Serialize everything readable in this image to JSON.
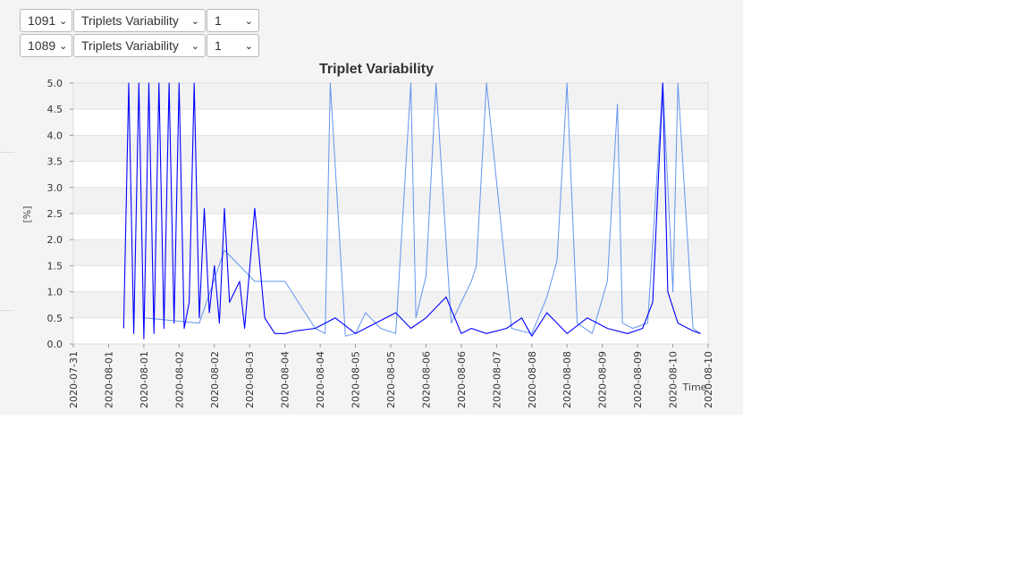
{
  "controls": [
    {
      "id_value": "1091",
      "metric_value": "Triplets Variability",
      "channel_value": "1"
    },
    {
      "id_value": "1089",
      "metric_value": "Triplets Variability",
      "channel_value": "1"
    }
  ],
  "chart_data": {
    "type": "line",
    "title": "Triplet Variability",
    "ylabel": "[%]",
    "xlabel": "Time",
    "ylim": [
      0,
      5
    ],
    "yticks": [
      0,
      0.5,
      1,
      1.5,
      2,
      2.5,
      3,
      3.5,
      4,
      4.5,
      5
    ],
    "ytick_labels": [
      "0.0",
      "0.5",
      "1.0",
      "1.5",
      "2.0",
      "2.5",
      "3.0",
      "3.5",
      "4.0",
      "4.5",
      "5.0"
    ],
    "xtick_labels": [
      "2020-07-31",
      "2020-08-01",
      "2020-08-01",
      "2020-08-02",
      "2020-08-02",
      "2020-08-03",
      "2020-08-04",
      "2020-08-04",
      "2020-08-05",
      "2020-08-05",
      "2020-08-06",
      "2020-08-06",
      "2020-08-07",
      "2020-08-08",
      "2020-08-08",
      "2020-08-09",
      "2020-08-09",
      "2020-08-10",
      "2020-08-10"
    ],
    "xlim": [
      "2020-07-31T00:00",
      "2020-08-10T12:00"
    ],
    "grid": "horizontal-bands",
    "series": [
      {
        "color": "#6495ed",
        "x": [
          "2020-08-01T04:00",
          "2020-08-02T02:00",
          "2020-08-02T12:00",
          "2020-08-03T00:00",
          "2020-08-03T12:00",
          "2020-08-04T00:00",
          "2020-08-04T04:00",
          "2020-08-04T06:00",
          "2020-08-04T12:00",
          "2020-08-04T16:00",
          "2020-08-04T18:00",
          "2020-08-04T20:00",
          "2020-08-04T22:00",
          "2020-08-05T02:00",
          "2020-08-05T08:00",
          "2020-08-05T14:00",
          "2020-08-05T16:00",
          "2020-08-05T20:00",
          "2020-08-06T00:00",
          "2020-08-06T06:00",
          "2020-08-06T14:00",
          "2020-08-06T16:00",
          "2020-08-06T20:00",
          "2020-08-07T06:00",
          "2020-08-07T14:00",
          "2020-08-07T20:00",
          "2020-08-08T00:00",
          "2020-08-08T04:00",
          "2020-08-08T08:00",
          "2020-08-08T14:00",
          "2020-08-08T20:00",
          "2020-08-09T00:00",
          "2020-08-09T02:00",
          "2020-08-09T06:00",
          "2020-08-09T12:00",
          "2020-08-09T18:00",
          "2020-08-09T22:00",
          "2020-08-10T00:00",
          "2020-08-10T06:00",
          "2020-08-10T09:00"
        ],
        "y": [
          0.5,
          0.4,
          1.8,
          1.2,
          1.2,
          0.3,
          0.2,
          5.0,
          0.15,
          0.2,
          0.4,
          0.6,
          0.5,
          0.3,
          0.2,
          5.0,
          0.5,
          1.3,
          5.0,
          0.4,
          1.2,
          1.5,
          5.0,
          0.3,
          0.2,
          0.9,
          1.6,
          5.0,
          0.4,
          0.2,
          1.2,
          4.6,
          0.4,
          0.3,
          0.4,
          5.0,
          1.0,
          5.0,
          0.3,
          0.2
        ]
      },
      {
        "color": "#0000ff",
        "x": [
          "2020-07-31T20:00",
          "2020-07-31T22:00",
          "2020-08-01T00:00",
          "2020-08-01T02:00",
          "2020-08-01T04:00",
          "2020-08-01T06:00",
          "2020-08-01T08:00",
          "2020-08-01T10:00",
          "2020-08-01T12:00",
          "2020-08-01T14:00",
          "2020-08-01T16:00",
          "2020-08-01T18:00",
          "2020-08-01T20:00",
          "2020-08-01T22:00",
          "2020-08-02T00:00",
          "2020-08-02T02:00",
          "2020-08-02T04:00",
          "2020-08-02T06:00",
          "2020-08-02T08:00",
          "2020-08-02T10:00",
          "2020-08-02T12:00",
          "2020-08-02T14:00",
          "2020-08-02T18:00",
          "2020-08-02T20:00",
          "2020-08-03T00:00",
          "2020-08-03T04:00",
          "2020-08-03T08:00",
          "2020-08-03T12:00",
          "2020-08-03T16:00",
          "2020-08-04T00:00",
          "2020-08-04T08:00",
          "2020-08-04T16:00",
          "2020-08-05T00:00",
          "2020-08-05T08:00",
          "2020-08-05T14:00",
          "2020-08-05T20:00",
          "2020-08-06T04:00",
          "2020-08-06T10:00",
          "2020-08-06T14:00",
          "2020-08-06T20:00",
          "2020-08-07T04:00",
          "2020-08-07T10:00",
          "2020-08-07T14:00",
          "2020-08-07T20:00",
          "2020-08-08T04:00",
          "2020-08-08T12:00",
          "2020-08-08T20:00",
          "2020-08-09T04:00",
          "2020-08-09T10:00",
          "2020-08-09T14:00",
          "2020-08-09T18:00",
          "2020-08-09T20:00",
          "2020-08-10T00:00",
          "2020-08-10T06:00",
          "2020-08-10T09:00"
        ],
        "y": [
          0.3,
          5.0,
          0.2,
          5.0,
          0.1,
          5.0,
          0.2,
          5.0,
          0.3,
          5.0,
          0.4,
          5.0,
          0.3,
          0.8,
          5.0,
          0.5,
          2.6,
          0.6,
          1.5,
          0.4,
          2.6,
          0.8,
          1.2,
          0.3,
          2.6,
          0.5,
          0.2,
          0.2,
          0.25,
          0.3,
          0.5,
          0.2,
          0.4,
          0.6,
          0.3,
          0.5,
          0.9,
          0.2,
          0.3,
          0.2,
          0.3,
          0.5,
          0.15,
          0.6,
          0.2,
          0.5,
          0.3,
          0.2,
          0.3,
          0.8,
          5.0,
          1.0,
          0.4,
          0.25,
          0.2
        ]
      }
    ]
  }
}
